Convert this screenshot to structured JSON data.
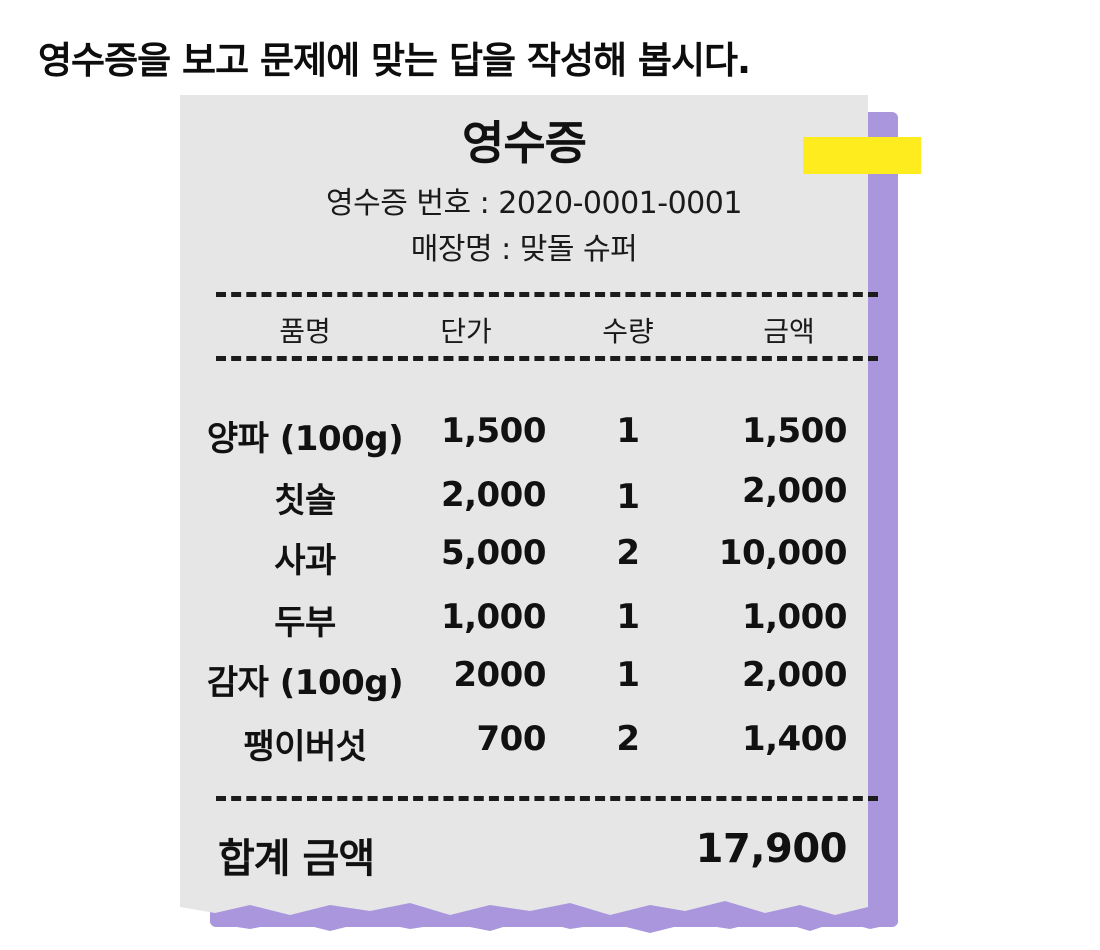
{
  "instruction": "영수증을 보고 문제에 맞는 답을 작성해 봅시다.",
  "receipt": {
    "title": "영수증",
    "number_line": "영수증 번호 : 2020-0001-0001",
    "store_line": "매장명 : 맞돌 슈퍼",
    "headers": {
      "name": "품명",
      "price": "단가",
      "qty": "수량",
      "amount": "금액"
    },
    "items": [
      {
        "name": "양파 (100g)",
        "price": "1,500",
        "qty": "1",
        "amount": "1,500"
      },
      {
        "name": "칫솔",
        "price": "2,000",
        "qty": "1",
        "amount": "2,000"
      },
      {
        "name": "사과",
        "price": "5,000",
        "qty": "2",
        "amount": "10,000"
      },
      {
        "name": "두부",
        "price": "1,000",
        "qty": "1",
        "amount": "1,000"
      },
      {
        "name": "감자 (100g)",
        "price": "2000",
        "qty": "1",
        "amount": "2,000"
      },
      {
        "name": "팽이버섯",
        "price": "700",
        "qty": "2",
        "amount": "1,400"
      }
    ],
    "total_label": "합계 금액",
    "total_value": "17,900"
  },
  "colors": {
    "paper": "#e6e6e6",
    "shadow_paper": "#a996dd",
    "tape": "#ffec1f",
    "text": "#111111"
  }
}
